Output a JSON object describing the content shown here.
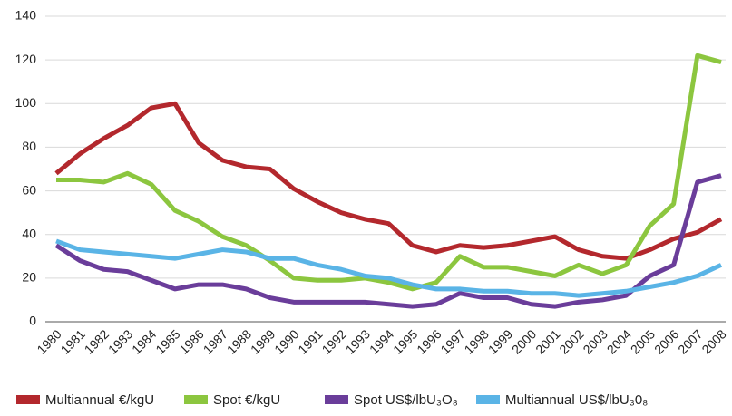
{
  "chart_data": {
    "type": "line",
    "categories": [
      "1980",
      "1981",
      "1982",
      "1983",
      "1984",
      "1985",
      "1986",
      "1987",
      "1988",
      "1989",
      "1990",
      "1991",
      "1992",
      "1993",
      "1994",
      "1995",
      "1996",
      "1997",
      "1998",
      "1999",
      "2000",
      "2001",
      "2002",
      "2003",
      "2004",
      "2005",
      "2006",
      "2007",
      "2008"
    ],
    "series": [
      {
        "name": "Multiannual €/kgU",
        "color": "#b3282d",
        "values": [
          68,
          77,
          84,
          90,
          98,
          100,
          82,
          74,
          71,
          70,
          61,
          55,
          50,
          47,
          45,
          35,
          32,
          35,
          34,
          35,
          37,
          39,
          33,
          30,
          29,
          33,
          38,
          41,
          47
        ]
      },
      {
        "name": "Spot €/kgU",
        "color": "#8cc63f",
        "values": [
          65,
          65,
          64,
          68,
          63,
          51,
          46,
          39,
          35,
          28,
          20,
          19,
          19,
          20,
          18,
          15,
          18,
          30,
          25,
          25,
          23,
          21,
          26,
          22,
          26,
          44,
          54,
          122,
          119
        ]
      },
      {
        "name": "Spot US$/lbU₃O₈",
        "color": "#6a3d9a",
        "values": [
          35,
          28,
          24,
          23,
          19,
          15,
          17,
          17,
          15,
          11,
          9,
          9,
          9,
          9,
          8,
          7,
          8,
          13,
          11,
          11,
          8,
          7,
          9,
          10,
          12,
          21,
          26,
          64,
          67
        ]
      },
      {
        "name": "Multiannual US$/lbU₃0₈",
        "color": "#5ab4e6",
        "values": [
          37,
          33,
          32,
          31,
          30,
          29,
          31,
          33,
          32,
          29,
          29,
          26,
          24,
          21,
          20,
          17,
          15,
          15,
          14,
          14,
          13,
          13,
          12,
          13,
          14,
          16,
          18,
          21,
          26
        ]
      }
    ],
    "ylim": [
      0,
      140
    ],
    "yticks": [
      0,
      20,
      40,
      60,
      80,
      100,
      120,
      140
    ],
    "grid": true,
    "legend": "bottom"
  }
}
